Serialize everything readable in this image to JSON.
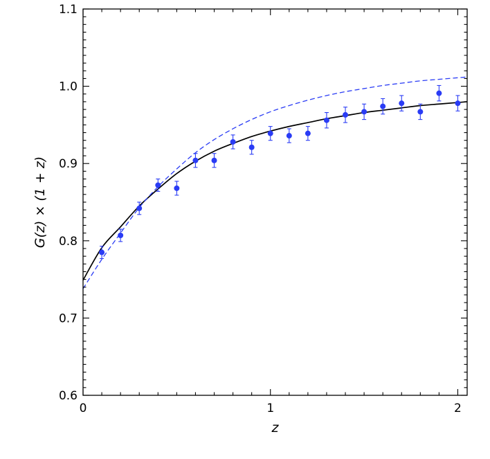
{
  "chart_data": {
    "type": "scatter",
    "title": "",
    "xlabel": "z",
    "ylabel": "G(z) × (1 + z)",
    "xlim": [
      0,
      2.05
    ],
    "ylim": [
      0.6,
      1.1
    ],
    "x_ticks": [
      {
        "value": 0,
        "label": "0"
      },
      {
        "value": 1,
        "label": "1"
      },
      {
        "value": 2,
        "label": "2"
      }
    ],
    "y_ticks": [
      {
        "value": 0.6,
        "label": "0.6"
      },
      {
        "value": 0.7,
        "label": "0.7"
      },
      {
        "value": 0.8,
        "label": "0.8"
      },
      {
        "value": 0.9,
        "label": "0.9"
      },
      {
        "value": 1.0,
        "label": "1.0"
      },
      {
        "value": 1.1,
        "label": "1.1"
      }
    ],
    "grid": false,
    "series": [
      {
        "kind": "points-with-errorbars",
        "color": "#2a3cf5",
        "x": [
          0.1,
          0.2,
          0.3,
          0.4,
          0.5,
          0.6,
          0.7,
          0.8,
          0.9,
          1.0,
          1.1,
          1.2,
          1.3,
          1.4,
          1.5,
          1.6,
          1.7,
          1.8,
          1.9,
          2.0
        ],
        "y": [
          0.785,
          0.807,
          0.842,
          0.872,
          0.868,
          0.904,
          0.904,
          0.928,
          0.921,
          0.939,
          0.936,
          0.939,
          0.956,
          0.963,
          0.967,
          0.974,
          0.978,
          0.967,
          0.991,
          0.978
        ],
        "err": [
          0.008,
          0.008,
          0.008,
          0.008,
          0.009,
          0.009,
          0.009,
          0.009,
          0.009,
          0.009,
          0.009,
          0.009,
          0.01,
          0.01,
          0.01,
          0.01,
          0.01,
          0.01,
          0.01,
          0.01
        ]
      },
      {
        "kind": "line",
        "style": "solid",
        "color": "#000000",
        "x": [
          0,
          0.1,
          0.2,
          0.3,
          0.4,
          0.5,
          0.6,
          0.7,
          0.8,
          0.9,
          1.0,
          1.1,
          1.2,
          1.3,
          1.4,
          1.5,
          1.6,
          1.7,
          1.8,
          1.9,
          2.0,
          2.05
        ],
        "y": [
          0.749,
          0.791,
          0.818,
          0.845,
          0.867,
          0.887,
          0.903,
          0.916,
          0.926,
          0.935,
          0.942,
          0.948,
          0.953,
          0.958,
          0.962,
          0.966,
          0.969,
          0.972,
          0.975,
          0.977,
          0.979,
          0.98
        ]
      },
      {
        "kind": "line",
        "style": "dashed",
        "color": "#2a3cf5",
        "x": [
          0,
          0.1,
          0.2,
          0.3,
          0.4,
          0.5,
          0.6,
          0.7,
          0.8,
          0.9,
          1.0,
          1.1,
          1.2,
          1.3,
          1.4,
          1.5,
          1.6,
          1.7,
          1.8,
          1.9,
          2.0,
          2.05
        ],
        "y": [
          0.738,
          0.776,
          0.81,
          0.843,
          0.87,
          0.893,
          0.914,
          0.931,
          0.945,
          0.957,
          0.967,
          0.975,
          0.982,
          0.988,
          0.993,
          0.997,
          1.001,
          1.004,
          1.007,
          1.009,
          1.011,
          1.012
        ]
      }
    ]
  }
}
